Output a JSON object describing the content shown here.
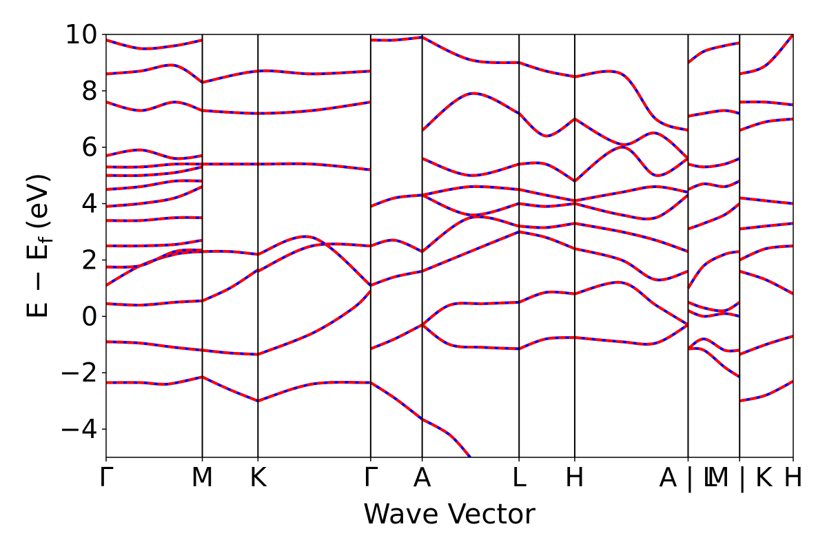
{
  "chart_data": {
    "type": "line",
    "title": "",
    "xlabel": "Wave Vector",
    "ylabel": "E − E_f (eV)",
    "ylabel_parts": {
      "main": "E − E",
      "sub": "f",
      "unit": "(eV)"
    },
    "ylim": [
      -5,
      10
    ],
    "yticks": [
      -4,
      -2,
      0,
      2,
      4,
      6,
      8,
      10
    ],
    "ytick_labels": [
      "−4",
      "−2",
      "0",
      "2",
      "4",
      "6",
      "8",
      "10"
    ],
    "xlim": [
      0,
      1
    ],
    "kpoints": [
      {
        "label": "Γ",
        "x": 0.0
      },
      {
        "label": "M",
        "x": 0.14
      },
      {
        "label": "K",
        "x": 0.221
      },
      {
        "label": "Γ",
        "x": 0.385
      },
      {
        "label": "A",
        "x": 0.46
      },
      {
        "label": "L",
        "x": 0.601
      },
      {
        "label": "H",
        "x": 0.682
      },
      {
        "label": "A | L",
        "x": 0.847
      },
      {
        "label": "M | K",
        "x": 0.922
      },
      {
        "label": "H",
        "x": 1.0
      }
    ],
    "grid": false,
    "legend": "none",
    "colors": {
      "series_a": "#0000ff",
      "series_b": "#ff0000",
      "vlines": "#000000"
    },
    "series": [
      {
        "x": [
          0,
          0.05,
          0.09,
          0.14
        ],
        "y": [
          -2.35,
          -2.35,
          -2.4,
          -2.15
        ]
      },
      {
        "x": [
          0.14,
          0.18,
          0.221
        ],
        "y": [
          -2.15,
          -2.6,
          -3.0
        ]
      },
      {
        "x": [
          0.221,
          0.3,
          0.385
        ],
        "y": [
          -3.0,
          -2.4,
          -2.35
        ]
      },
      {
        "x": [
          0.385,
          0.42,
          0.46
        ],
        "y": [
          -2.35,
          -2.9,
          -3.65
        ]
      },
      {
        "x": [
          0.46,
          0.5,
          0.53
        ],
        "y": [
          -3.65,
          -4.2,
          -5.0
        ]
      },
      {
        "x": [
          0.0,
          0.05,
          0.1,
          0.14
        ],
        "y": [
          -0.9,
          -0.95,
          -1.1,
          -1.2
        ]
      },
      {
        "x": [
          0.14,
          0.18,
          0.221
        ],
        "y": [
          -1.2,
          -1.3,
          -1.35
        ]
      },
      {
        "x": [
          0.221,
          0.3,
          0.36,
          0.385
        ],
        "y": [
          -1.35,
          -0.6,
          0.3,
          0.9
        ]
      },
      {
        "x": [
          0.385,
          0.42,
          0.46
        ],
        "y": [
          -1.15,
          -0.8,
          -0.3
        ]
      },
      {
        "x": [
          0.46,
          0.5,
          0.55,
          0.601
        ],
        "y": [
          -0.3,
          -1.0,
          -1.1,
          -1.15
        ]
      },
      {
        "x": [
          0.601,
          0.64,
          0.682
        ],
        "y": [
          -1.15,
          -0.8,
          -0.75
        ]
      },
      {
        "x": [
          0.682,
          0.75,
          0.8,
          0.847
        ],
        "y": [
          -0.75,
          -0.9,
          -0.95,
          -0.3
        ]
      },
      {
        "x": [
          0.46,
          0.5,
          0.55,
          0.601
        ],
        "y": [
          -0.3,
          0.4,
          0.45,
          0.5
        ]
      },
      {
        "x": [
          0.601,
          0.64,
          0.682
        ],
        "y": [
          0.5,
          0.85,
          0.8
        ]
      },
      {
        "x": [
          0.682,
          0.75,
          0.8,
          0.847
        ],
        "y": [
          0.8,
          1.2,
          0.4,
          -0.3
        ]
      },
      {
        "x": [
          0.0,
          0.05,
          0.1,
          0.14
        ],
        "y": [
          0.45,
          0.4,
          0.5,
          0.55
        ]
      },
      {
        "x": [
          0.14,
          0.18,
          0.221
        ],
        "y": [
          0.55,
          1.0,
          1.65
        ]
      },
      {
        "x": [
          0.0,
          0.05,
          0.1,
          0.14
        ],
        "y": [
          1.1,
          1.8,
          2.2,
          2.3
        ]
      },
      {
        "x": [
          0.14,
          0.18,
          0.221
        ],
        "y": [
          2.3,
          2.3,
          2.2
        ]
      },
      {
        "x": [
          0.221,
          0.3,
          0.385
        ],
        "y": [
          2.2,
          2.8,
          1.1
        ]
      },
      {
        "x": [
          0.385,
          0.42,
          0.46
        ],
        "y": [
          1.1,
          1.4,
          1.6
        ]
      },
      {
        "x": [
          0.46,
          0.53,
          0.601
        ],
        "y": [
          1.6,
          2.3,
          3.0
        ]
      },
      {
        "x": [
          0.601,
          0.64,
          0.682
        ],
        "y": [
          3.0,
          2.8,
          2.4
        ]
      },
      {
        "x": [
          0.682,
          0.75,
          0.8,
          0.847
        ],
        "y": [
          2.4,
          2.0,
          1.3,
          1.6
        ]
      },
      {
        "x": [
          0.0,
          0.05,
          0.1,
          0.14
        ],
        "y": [
          1.75,
          1.8,
          2.3,
          2.35
        ]
      },
      {
        "x": [
          0.0,
          0.05,
          0.1,
          0.14
        ],
        "y": [
          2.5,
          2.5,
          2.55,
          2.7
        ]
      },
      {
        "x": [
          0.221,
          0.3,
          0.385
        ],
        "y": [
          1.6,
          2.5,
          2.5
        ]
      },
      {
        "x": [
          0.385,
          0.42,
          0.46
        ],
        "y": [
          2.5,
          2.7,
          2.3
        ]
      },
      {
        "x": [
          0.46,
          0.53,
          0.601
        ],
        "y": [
          2.3,
          3.5,
          3.2
        ]
      },
      {
        "x": [
          0.601,
          0.64,
          0.682
        ],
        "y": [
          3.2,
          3.15,
          3.3
        ]
      },
      {
        "x": [
          0.682,
          0.75,
          0.8,
          0.847
        ],
        "y": [
          3.3,
          3.0,
          2.7,
          2.3
        ]
      },
      {
        "x": [
          0.0,
          0.05,
          0.1,
          0.14
        ],
        "y": [
          3.4,
          3.4,
          3.5,
          3.5
        ]
      },
      {
        "x": [
          0.0,
          0.05,
          0.1,
          0.14
        ],
        "y": [
          3.9,
          4.0,
          4.2,
          4.6
        ]
      },
      {
        "x": [
          0.0,
          0.05,
          0.1,
          0.14
        ],
        "y": [
          4.5,
          4.6,
          4.8,
          4.8
        ]
      },
      {
        "x": [
          0.0,
          0.05,
          0.1,
          0.14
        ],
        "y": [
          5.0,
          5.0,
          5.1,
          5.3
        ]
      },
      {
        "x": [
          0.0,
          0.05,
          0.1,
          0.14
        ],
        "y": [
          5.3,
          5.3,
          5.4,
          5.4
        ]
      },
      {
        "x": [
          0.0,
          0.05,
          0.1,
          0.14
        ],
        "y": [
          5.7,
          5.9,
          5.6,
          5.7
        ]
      },
      {
        "x": [
          0.14,
          0.221,
          0.3,
          0.385
        ],
        "y": [
          5.4,
          5.4,
          5.4,
          5.2
        ]
      },
      {
        "x": [
          0.385,
          0.42,
          0.46
        ],
        "y": [
          3.9,
          4.2,
          4.3
        ]
      },
      {
        "x": [
          0.46,
          0.53,
          0.601
        ],
        "y": [
          4.3,
          3.6,
          4.0
        ]
      },
      {
        "x": [
          0.601,
          0.64,
          0.682
        ],
        "y": [
          4.0,
          3.9,
          4.0
        ]
      },
      {
        "x": [
          0.682,
          0.75,
          0.8,
          0.847
        ],
        "y": [
          4.0,
          3.6,
          3.5,
          4.3
        ]
      },
      {
        "x": [
          0.46,
          0.53,
          0.601
        ],
        "y": [
          4.3,
          4.6,
          4.5
        ]
      },
      {
        "x": [
          0.601,
          0.64,
          0.682
        ],
        "y": [
          4.5,
          4.3,
          4.1
        ]
      },
      {
        "x": [
          0.682,
          0.75,
          0.8,
          0.847
        ],
        "y": [
          4.1,
          4.4,
          4.6,
          4.4
        ]
      },
      {
        "x": [
          0.46,
          0.53,
          0.601
        ],
        "y": [
          5.6,
          5.0,
          5.4
        ]
      },
      {
        "x": [
          0.601,
          0.64,
          0.682
        ],
        "y": [
          5.4,
          5.4,
          4.8
        ]
      },
      {
        "x": [
          0.682,
          0.75,
          0.8,
          0.847
        ],
        "y": [
          4.8,
          6.0,
          5.0,
          5.6
        ]
      },
      {
        "x": [
          0.46,
          0.53,
          0.601
        ],
        "y": [
          6.6,
          7.9,
          7.2
        ]
      },
      {
        "x": [
          0.601,
          0.64,
          0.682
        ],
        "y": [
          7.2,
          6.4,
          7.0
        ]
      },
      {
        "x": [
          0.682,
          0.75,
          0.8,
          0.847
        ],
        "y": [
          7.0,
          6.1,
          6.5,
          5.6
        ]
      },
      {
        "x": [
          0.0,
          0.05,
          0.1,
          0.14
        ],
        "y": [
          7.6,
          7.3,
          7.6,
          7.3
        ]
      },
      {
        "x": [
          0.14,
          0.221,
          0.3,
          0.385
        ],
        "y": [
          7.3,
          7.2,
          7.3,
          7.6
        ]
      },
      {
        "x": [
          0.0,
          0.05,
          0.1,
          0.14
        ],
        "y": [
          8.6,
          8.7,
          8.9,
          8.3
        ]
      },
      {
        "x": [
          0.14,
          0.221,
          0.3,
          0.385
        ],
        "y": [
          8.3,
          8.7,
          8.6,
          8.7
        ]
      },
      {
        "x": [
          0.0,
          0.05,
          0.1,
          0.14
        ],
        "y": [
          9.8,
          9.5,
          9.6,
          9.8
        ]
      },
      {
        "x": [
          0.385,
          0.42,
          0.46
        ],
        "y": [
          9.8,
          9.8,
          9.9
        ]
      },
      {
        "x": [
          0.46,
          0.53,
          0.601
        ],
        "y": [
          9.9,
          9.1,
          9.0
        ]
      },
      {
        "x": [
          0.601,
          0.64,
          0.682
        ],
        "y": [
          9.0,
          8.7,
          8.5
        ]
      },
      {
        "x": [
          0.682,
          0.75,
          0.8,
          0.847
        ],
        "y": [
          8.5,
          8.6,
          7.0,
          6.6
        ]
      },
      {
        "x": [
          0.847,
          0.87,
          0.9,
          0.922
        ],
        "y": [
          1.0,
          1.8,
          2.2,
          2.3
        ]
      },
      {
        "x": [
          0.847,
          0.87,
          0.9,
          0.922
        ],
        "y": [
          0.5,
          0.3,
          0.2,
          0.5
        ]
      },
      {
        "x": [
          0.847,
          0.87,
          0.9,
          0.922
        ],
        "y": [
          0.2,
          0.0,
          0.1,
          0.0
        ]
      },
      {
        "x": [
          0.847,
          0.87,
          0.9,
          0.922
        ],
        "y": [
          -1.15,
          -0.8,
          -1.2,
          -1.2
        ]
      },
      {
        "x": [
          0.847,
          0.87,
          0.9,
          0.922
        ],
        "y": [
          -1.15,
          -1.2,
          -1.8,
          -2.15
        ]
      },
      {
        "x": [
          0.847,
          0.87,
          0.9,
          0.922
        ],
        "y": [
          3.1,
          3.3,
          3.6,
          4.0
        ]
      },
      {
        "x": [
          0.847,
          0.87,
          0.9,
          0.922
        ],
        "y": [
          4.5,
          4.7,
          4.6,
          4.8
        ]
      },
      {
        "x": [
          0.847,
          0.87,
          0.9,
          0.922
        ],
        "y": [
          5.4,
          5.3,
          5.4,
          5.6
        ]
      },
      {
        "x": [
          0.847,
          0.87,
          0.9,
          0.922
        ],
        "y": [
          7.1,
          7.2,
          7.3,
          7.2
        ]
      },
      {
        "x": [
          0.847,
          0.87,
          0.9,
          0.922
        ],
        "y": [
          9.0,
          9.4,
          9.6,
          9.7
        ]
      },
      {
        "x": [
          0.922,
          0.96,
          1.0
        ],
        "y": [
          -3.0,
          -2.8,
          -2.3
        ]
      },
      {
        "x": [
          0.922,
          0.96,
          1.0
        ],
        "y": [
          -1.35,
          -1.0,
          -0.7
        ]
      },
      {
        "x": [
          0.922,
          0.96,
          1.0
        ],
        "y": [
          1.6,
          1.3,
          0.8
        ]
      },
      {
        "x": [
          0.922,
          0.96,
          1.0
        ],
        "y": [
          2.0,
          2.4,
          2.5
        ]
      },
      {
        "x": [
          0.922,
          0.96,
          1.0
        ],
        "y": [
          3.1,
          3.2,
          3.3
        ]
      },
      {
        "x": [
          0.922,
          0.96,
          1.0
        ],
        "y": [
          4.2,
          4.1,
          4.0
        ]
      },
      {
        "x": [
          0.922,
          0.96,
          1.0
        ],
        "y": [
          6.6,
          6.9,
          7.0
        ]
      },
      {
        "x": [
          0.922,
          0.96,
          1.0
        ],
        "y": [
          7.6,
          7.6,
          7.5
        ]
      },
      {
        "x": [
          0.922,
          0.96,
          1.0
        ],
        "y": [
          8.6,
          8.9,
          10.0
        ]
      }
    ]
  }
}
